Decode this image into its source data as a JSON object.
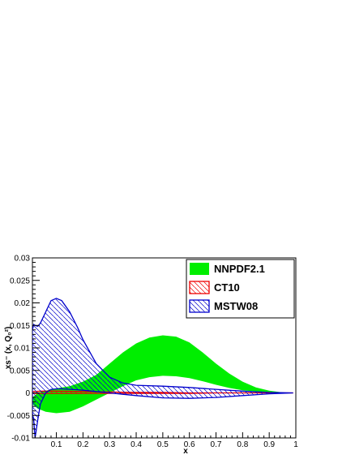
{
  "chart_data": {
    "type": "area",
    "xlabel": "x",
    "ylabel": "xs⁻ (x, Q₀²)",
    "xlim": [
      0.01,
      1.0
    ],
    "ylim": [
      -0.01,
      0.03
    ],
    "xticks": [
      0.1,
      0.2,
      0.3,
      0.4,
      0.5,
      0.6,
      0.7,
      0.8,
      0.9,
      1
    ],
    "xtick_labels": [
      "0.1",
      "0.2",
      "0.3",
      "0.4",
      "0.5",
      "0.6",
      "0.7",
      "0.8",
      "0.9",
      "1"
    ],
    "yticks": [
      -0.01,
      -0.005,
      0,
      0.005,
      0.01,
      0.015,
      0.02,
      0.025,
      0.03
    ],
    "ytick_labels": [
      "-0.01",
      "-0.005",
      "0",
      "0.005",
      "0.01",
      "0.015",
      "0.02",
      "0.025",
      "0.03"
    ],
    "legend_position": "top-right",
    "series": [
      {
        "name": "NNPDF2.1",
        "color": "#00ee00",
        "style": "solid-fill",
        "x": [
          0.01,
          0.03,
          0.06,
          0.1,
          0.15,
          0.2,
          0.25,
          0.3,
          0.35,
          0.4,
          0.45,
          0.5,
          0.55,
          0.6,
          0.65,
          0.7,
          0.75,
          0.8,
          0.85,
          0.9,
          0.95,
          0.99
        ],
        "upper": [
          -0.001,
          0.0,
          0.0005,
          0.001,
          0.0015,
          0.0025,
          0.004,
          0.0065,
          0.009,
          0.011,
          0.0123,
          0.0128,
          0.0125,
          0.0112,
          0.009,
          0.0065,
          0.0043,
          0.0025,
          0.0012,
          0.0005,
          0.0001,
          0.0
        ],
        "lower": [
          -0.0025,
          -0.0035,
          -0.0042,
          -0.0045,
          -0.0042,
          -0.003,
          -0.0015,
          0.0,
          0.0015,
          0.0028,
          0.0035,
          0.0038,
          0.0037,
          0.0033,
          0.0026,
          0.0018,
          0.0011,
          0.0006,
          0.0003,
          0.0001,
          0.0,
          0.0
        ]
      },
      {
        "name": "CT10",
        "color": "#ee0000",
        "style": "hatched",
        "x": [
          0.01,
          0.05,
          0.1,
          0.2,
          0.3,
          0.4,
          0.5,
          0.6,
          0.7,
          0.8,
          0.9,
          0.99
        ],
        "upper": [
          0.0003,
          0.0004,
          0.0004,
          0.0003,
          0.0002,
          0.0001,
          0.0001,
          0.0,
          0.0,
          0.0,
          0.0,
          0.0
        ],
        "lower": [
          -0.0001,
          -0.0001,
          -0.0001,
          -0.0001,
          -0.0001,
          -0.0001,
          -0.0001,
          -0.0001,
          0.0,
          0.0,
          0.0,
          0.0
        ]
      },
      {
        "name": "MSTW08",
        "color": "#0000cc",
        "style": "hatched",
        "x": [
          0.01,
          0.015,
          0.02,
          0.03,
          0.04,
          0.06,
          0.08,
          0.1,
          0.12,
          0.15,
          0.18,
          0.2,
          0.25,
          0.3,
          0.35,
          0.4,
          0.5,
          0.6,
          0.7,
          0.8,
          0.9,
          0.99
        ],
        "upper": [
          0.014,
          0.0152,
          0.015,
          0.0148,
          0.0155,
          0.018,
          0.0205,
          0.021,
          0.0205,
          0.018,
          0.0145,
          0.0118,
          0.0065,
          0.0035,
          0.0022,
          0.0017,
          0.0015,
          0.0012,
          0.0008,
          0.0004,
          0.0001,
          0.0
        ],
        "lower": [
          -0.0045,
          -0.006,
          -0.01,
          -0.006,
          -0.0025,
          0.0,
          0.0008,
          0.0009,
          0.0009,
          0.0008,
          0.0007,
          0.0006,
          0.0003,
          0.0,
          -0.0003,
          -0.0006,
          -0.0011,
          -0.0012,
          -0.001,
          -0.0006,
          -0.0002,
          0.0
        ]
      }
    ]
  }
}
